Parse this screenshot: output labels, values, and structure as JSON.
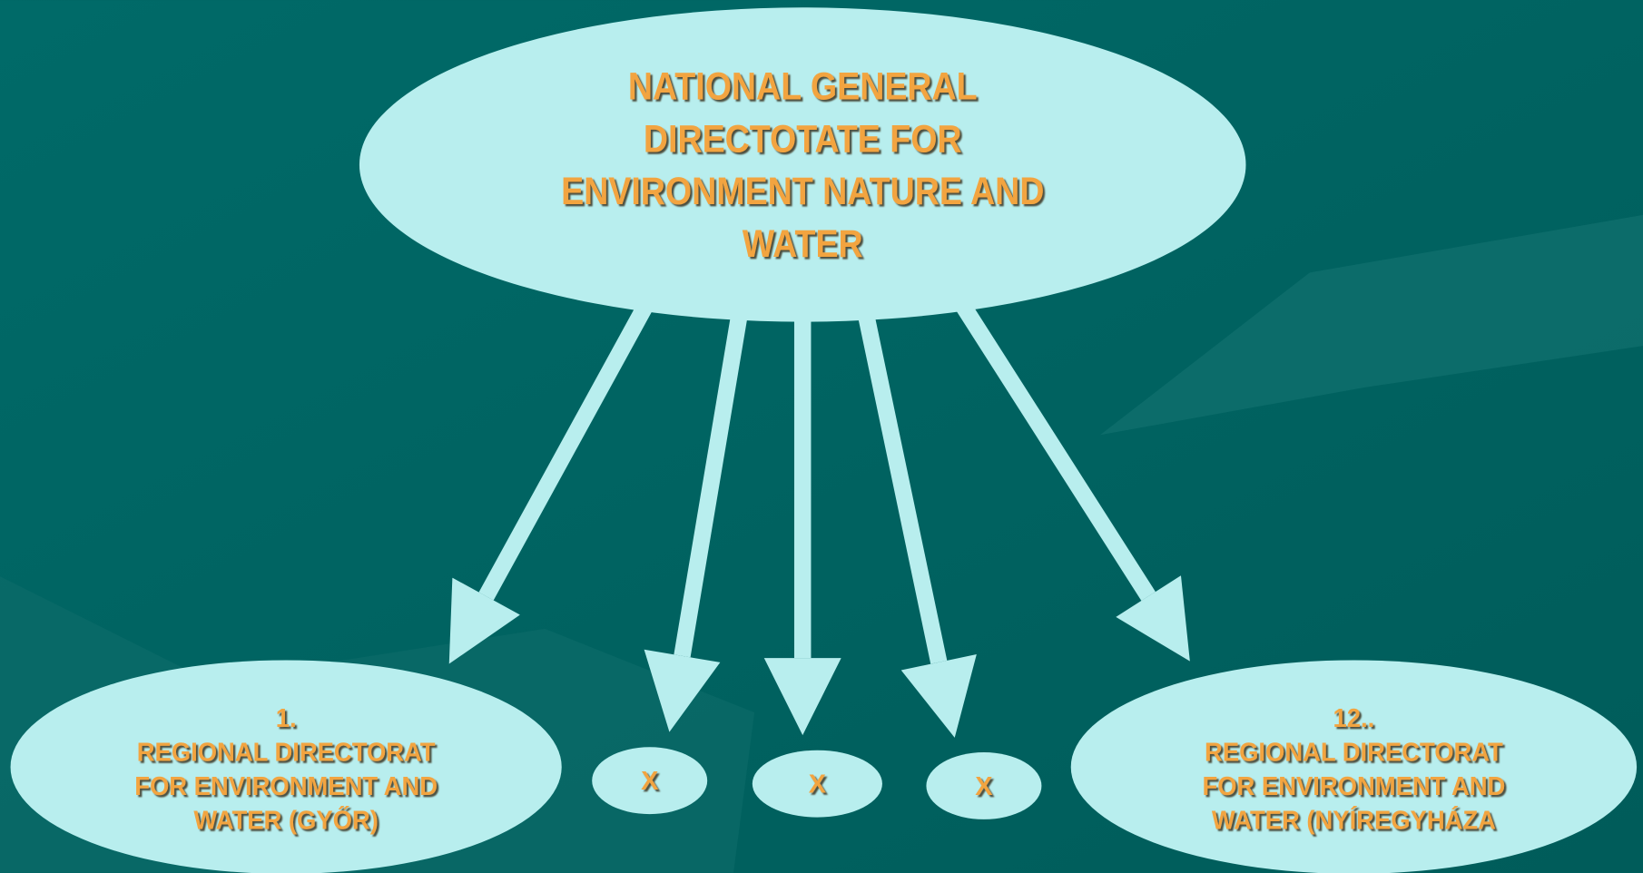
{
  "nodes": [
    {
      "lines": [
        "NATIONAL GENERAL",
        "DIRECTOTATE FOR",
        "ENVIRONMENT NATURE AND",
        "WATER"
      ]
    },
    {
      "lines": [
        "1.",
        "REGIONAL DIRECTORAT",
        "FOR ENVIRONMENT AND",
        "WATER  (GYŐR)"
      ]
    },
    {
      "lines": [
        "X"
      ]
    },
    {
      "lines": [
        "X"
      ]
    },
    {
      "lines": [
        "X"
      ]
    },
    {
      "lines": [
        "12..",
        "REGIONAL DIRECTORAT",
        "FOR ENVIRONMENT AND",
        "WATER  (NYÍREGYHÁZA"
      ]
    }
  ]
}
